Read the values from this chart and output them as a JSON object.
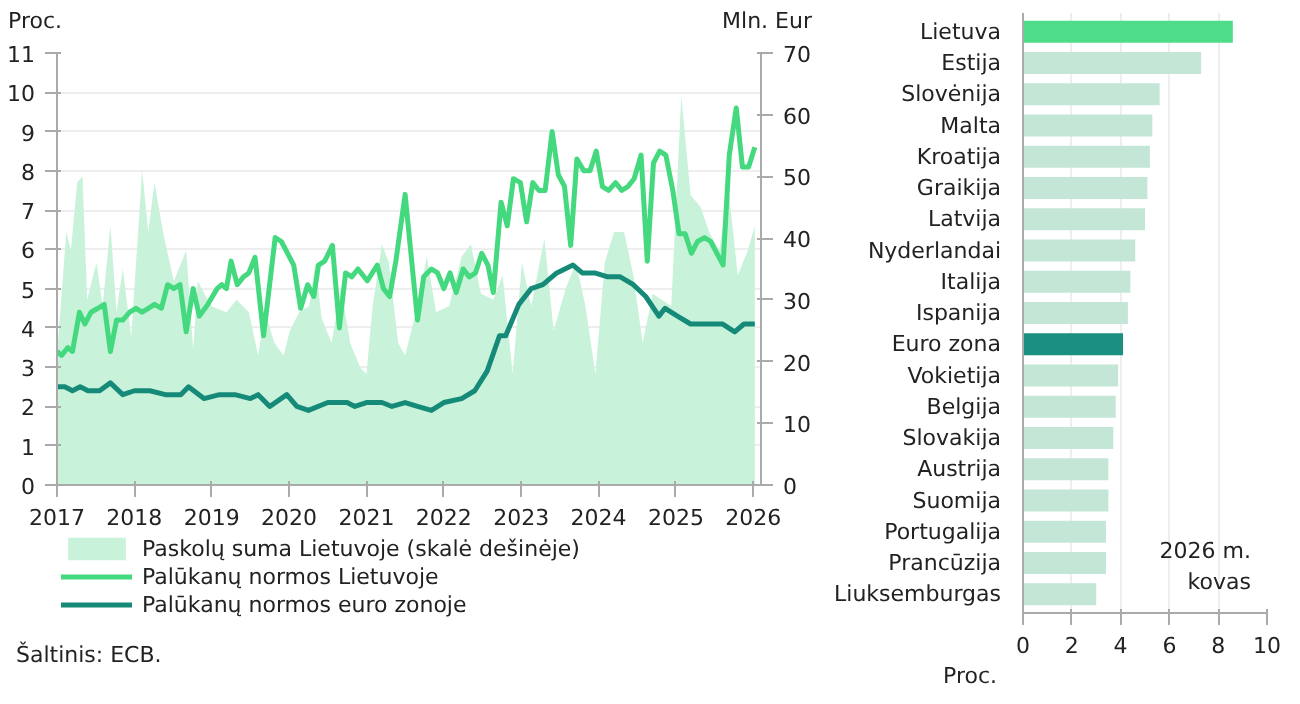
{
  "chart_data": [
    {
      "type": "line",
      "ylabel": "Proc.",
      "y2label": "Mln. Eur",
      "xlim": [
        2017,
        2026.1
      ],
      "xticks": [
        2017,
        2018,
        2019,
        2020,
        2021,
        2022,
        2023,
        2024,
        2025,
        2026
      ],
      "ylim": [
        0,
        11
      ],
      "yticks": [
        0,
        1,
        2,
        3,
        4,
        5,
        6,
        7,
        8,
        9,
        10,
        11
      ],
      "y2lim": [
        0,
        70
      ],
      "y2ticks": [
        0,
        10,
        20,
        30,
        40,
        50,
        60,
        70
      ],
      "grid": "y",
      "legend": "bottom",
      "annotations": [
        "Šaltinis: ECB."
      ],
      "series": [
        {
          "name": "Paskolų suma Lietuvoje (skalė dešinėje)",
          "type": "area",
          "axis": "y2",
          "color": "#c8f2d9",
          "x": [
            2017.0,
            2017.12,
            2017.18,
            2017.26,
            2017.33,
            2017.39,
            2017.51,
            2017.59,
            2017.69,
            2017.77,
            2017.85,
            2017.96,
            2018.1,
            2018.18,
            2018.26,
            2018.37,
            2018.51,
            2018.67,
            2018.76,
            2018.82,
            2018.99,
            2019.19,
            2019.32,
            2019.48,
            2019.6,
            2019.69,
            2019.81,
            2019.93,
            2020.01,
            2020.13,
            2020.26,
            2020.34,
            2020.42,
            2020.55,
            2020.67,
            2020.79,
            2020.92,
            2021.0,
            2021.08,
            2021.2,
            2021.29,
            2021.41,
            2021.5,
            2021.66,
            2021.78,
            2021.9,
            2022.07,
            2022.23,
            2022.35,
            2022.48,
            2022.64,
            2022.76,
            2022.89,
            2023.01,
            2023.13,
            2023.3,
            2023.42,
            2023.58,
            2023.71,
            2023.83,
            2023.96,
            2024.08,
            2024.2,
            2024.33,
            2024.45,
            2024.57,
            2024.7,
            2024.82,
            2024.94,
            2025.07,
            2025.19,
            2025.32,
            2025.43,
            2025.56,
            2025.68,
            2025.8,
            2025.93,
            2026.02
          ],
          "values": [
            21,
            41,
            38,
            49,
            50,
            30,
            36,
            29,
            42,
            28,
            35,
            24,
            51,
            41,
            49,
            41,
            33,
            38,
            22,
            33,
            29,
            28,
            30,
            28,
            21,
            28,
            23,
            21,
            25,
            28,
            29,
            36,
            27,
            23,
            32,
            23,
            19,
            18,
            29,
            39,
            36,
            23,
            21,
            29,
            37,
            28,
            29,
            37,
            39,
            31,
            30,
            34,
            18,
            36,
            29,
            40,
            25,
            32,
            36,
            29,
            18,
            36,
            41,
            41,
            34,
            23,
            31,
            30,
            29,
            63,
            47,
            45,
            41,
            38,
            48,
            34,
            38,
            42
          ]
        },
        {
          "name": "Palūkanų normos Lietuvoje",
          "type": "line",
          "color": "#45d97f",
          "x": [
            2017.0,
            2017.06,
            2017.14,
            2017.2,
            2017.29,
            2017.36,
            2017.44,
            2017.53,
            2017.61,
            2017.69,
            2017.77,
            2017.85,
            2017.94,
            2018.02,
            2018.1,
            2018.18,
            2018.26,
            2018.35,
            2018.43,
            2018.51,
            2018.59,
            2018.67,
            2018.76,
            2018.84,
            2018.95,
            2019.07,
            2019.13,
            2019.19,
            2019.25,
            2019.33,
            2019.41,
            2019.48,
            2019.56,
            2019.67,
            2019.82,
            2019.9,
            2020.06,
            2020.15,
            2020.24,
            2020.32,
            2020.38,
            2020.46,
            2020.56,
            2020.65,
            2020.73,
            2020.81,
            2020.89,
            2021.01,
            2021.14,
            2021.22,
            2021.3,
            2021.38,
            2021.5,
            2021.66,
            2021.74,
            2021.84,
            2021.92,
            2022.0,
            2022.08,
            2022.16,
            2022.25,
            2022.33,
            2022.41,
            2022.49,
            2022.57,
            2022.64,
            2022.74,
            2022.82,
            2022.9,
            2022.99,
            2023.07,
            2023.15,
            2023.23,
            2023.31,
            2023.4,
            2023.48,
            2023.56,
            2023.64,
            2023.72,
            2023.81,
            2023.89,
            2023.97,
            2024.05,
            2024.13,
            2024.22,
            2024.3,
            2024.38,
            2024.46,
            2024.55,
            2024.63,
            2024.71,
            2024.79,
            2024.87,
            2024.96,
            2025.04,
            2025.12,
            2025.2,
            2025.28,
            2025.37,
            2025.45,
            2025.53,
            2025.61,
            2025.69,
            2025.78,
            2025.86,
            2025.94,
            2026.02
          ],
          "values": [
            3.4,
            3.3,
            3.5,
            3.4,
            4.4,
            4.1,
            4.4,
            4.5,
            4.6,
            3.4,
            4.2,
            4.2,
            4.4,
            4.5,
            4.4,
            4.5,
            4.6,
            4.5,
            5.1,
            5.0,
            5.1,
            3.9,
            5.0,
            4.3,
            4.6,
            5.0,
            5.1,
            5.0,
            5.7,
            5.1,
            5.3,
            5.4,
            5.8,
            3.8,
            6.3,
            6.2,
            5.6,
            4.5,
            5.1,
            4.8,
            5.6,
            5.7,
            6.1,
            4.0,
            5.4,
            5.3,
            5.5,
            5.2,
            5.6,
            5.0,
            4.8,
            5.7,
            7.4,
            4.2,
            5.3,
            5.5,
            5.4,
            5.0,
            5.4,
            4.9,
            5.5,
            5.3,
            5.4,
            5.9,
            5.6,
            4.9,
            7.2,
            6.6,
            7.8,
            7.7,
            6.7,
            7.7,
            7.5,
            7.5,
            9.0,
            7.9,
            7.6,
            6.1,
            8.3,
            8.0,
            8.0,
            8.5,
            7.6,
            7.5,
            7.7,
            7.5,
            7.6,
            7.8,
            8.4,
            5.7,
            8.2,
            8.5,
            8.4,
            7.5,
            6.4,
            6.4,
            5.9,
            6.2,
            6.3,
            6.2,
            5.9,
            5.6,
            8.4,
            9.6,
            8.1,
            8.1,
            8.6
          ]
        },
        {
          "name": "Palūkanų normos euro zonoje",
          "type": "line",
          "color": "#168a78",
          "x": [
            2017.0,
            2017.1,
            2017.2,
            2017.3,
            2017.4,
            2017.55,
            2017.69,
            2017.85,
            2018.0,
            2018.2,
            2018.4,
            2018.6,
            2018.7,
            2018.9,
            2019.1,
            2019.3,
            2019.5,
            2019.6,
            2019.75,
            2019.97,
            2020.1,
            2020.25,
            2020.5,
            2020.75,
            2020.85,
            2021.0,
            2021.2,
            2021.33,
            2021.5,
            2021.66,
            2021.84,
            2022.0,
            2022.23,
            2022.4,
            2022.56,
            2022.72,
            2022.8,
            2022.97,
            2023.13,
            2023.28,
            2023.46,
            2023.67,
            2023.79,
            2023.95,
            2024.12,
            2024.28,
            2024.45,
            2024.61,
            2024.78,
            2024.86,
            2025.02,
            2025.19,
            2025.35,
            2025.43,
            2025.6,
            2025.76,
            2025.88,
            2026.02
          ],
          "values": [
            2.5,
            2.5,
            2.4,
            2.5,
            2.4,
            2.4,
            2.6,
            2.3,
            2.4,
            2.4,
            2.3,
            2.3,
            2.5,
            2.2,
            2.3,
            2.3,
            2.2,
            2.3,
            2.0,
            2.3,
            2.0,
            1.9,
            2.1,
            2.1,
            2.0,
            2.1,
            2.1,
            2.0,
            2.1,
            2.0,
            1.9,
            2.1,
            2.2,
            2.4,
            2.9,
            3.8,
            3.8,
            4.6,
            5.0,
            5.1,
            5.4,
            5.6,
            5.4,
            5.4,
            5.3,
            5.3,
            5.1,
            4.8,
            4.3,
            4.5,
            4.3,
            4.1,
            4.1,
            4.1,
            4.1,
            3.9,
            4.1,
            4.1
          ]
        }
      ]
    },
    {
      "type": "bar",
      "orientation": "horizontal",
      "xlabel": "Proc.",
      "xlim": [
        0,
        10
      ],
      "xticks": [
        0,
        2,
        4,
        6,
        8,
        10
      ],
      "grid": "x",
      "annotations": [
        "2026 m.\nkovas"
      ],
      "categories": [
        "Lietuva",
        "Estija",
        "Slovėnija",
        "Malta",
        "Kroatija",
        "Graikija",
        "Latvija",
        "Nyderlandai",
        "Italija",
        "Ispanija",
        "Euro zona",
        "Vokietija",
        "Belgija",
        "Slovakija",
        "Austrija",
        "Suomija",
        "Portugalija",
        "Prancūzija",
        "Liuksemburgas"
      ],
      "values": [
        8.6,
        7.3,
        5.6,
        5.3,
        5.2,
        5.1,
        5.0,
        4.6,
        4.4,
        4.3,
        4.1,
        3.9,
        3.8,
        3.7,
        3.5,
        3.5,
        3.4,
        3.4,
        3.0
      ],
      "colors": [
        "#4fdc88",
        "#c3e6d6",
        "#c3e6d6",
        "#c3e6d6",
        "#c3e6d6",
        "#c3e6d6",
        "#c3e6d6",
        "#c3e6d6",
        "#c3e6d6",
        "#c3e6d6",
        "#1b9080",
        "#c3e6d6",
        "#c3e6d6",
        "#c3e6d6",
        "#c3e6d6",
        "#c3e6d6",
        "#c3e6d6",
        "#c3e6d6",
        "#c3e6d6"
      ]
    }
  ]
}
